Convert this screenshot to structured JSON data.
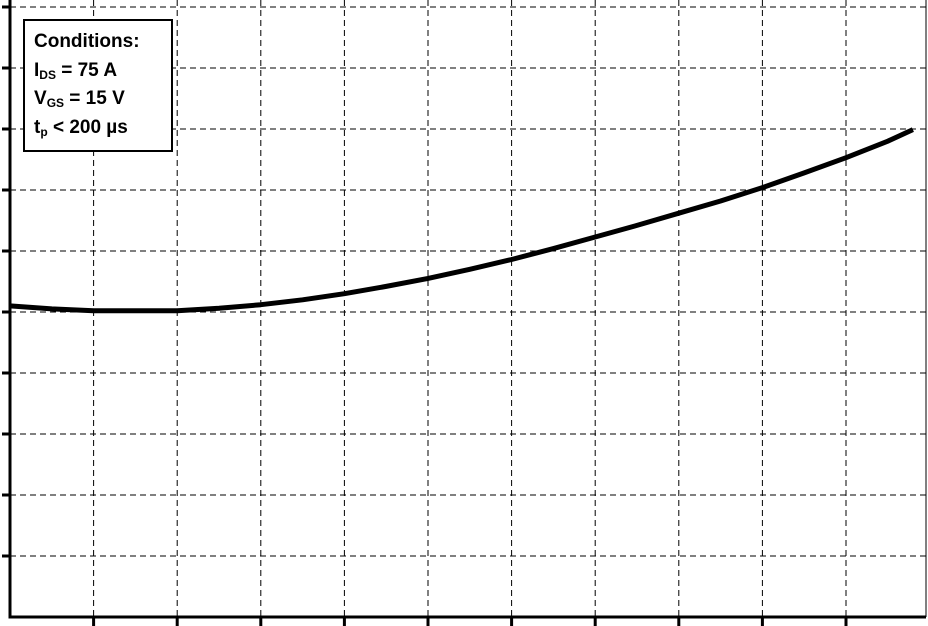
{
  "chart_data": {
    "type": "line",
    "title": "",
    "xlabel": "",
    "ylabel": "",
    "x_ticks": 11,
    "y_ticks": 10,
    "grid": true,
    "grid_style": "dashed",
    "line_color": "#000000",
    "series": [
      {
        "x": [
          0,
          0.5,
          1,
          1.5,
          2,
          2.5,
          3,
          3.5,
          4,
          4.5,
          5,
          5.5,
          6,
          6.5,
          7,
          7.5,
          8,
          8.5,
          9,
          9.5,
          10,
          10.5,
          10.8
        ],
        "y": [
          5.1,
          5.05,
          5.02,
          5.02,
          5.02,
          5.06,
          5.12,
          5.2,
          5.3,
          5.42,
          5.55,
          5.7,
          5.86,
          6.04,
          6.23,
          6.42,
          6.62,
          6.82,
          7.04,
          7.28,
          7.53,
          7.8,
          7.99
        ]
      }
    ],
    "annotation": {
      "title": "Conditions:",
      "lines": [
        {
          "main": "I",
          "sub": "DS",
          "rest": " = 75 A"
        },
        {
          "main": "V",
          "sub": "GS",
          "rest": " = 15 V"
        },
        {
          "main": "t",
          "sub": "p",
          "rest": " < 200 µs"
        }
      ]
    }
  }
}
